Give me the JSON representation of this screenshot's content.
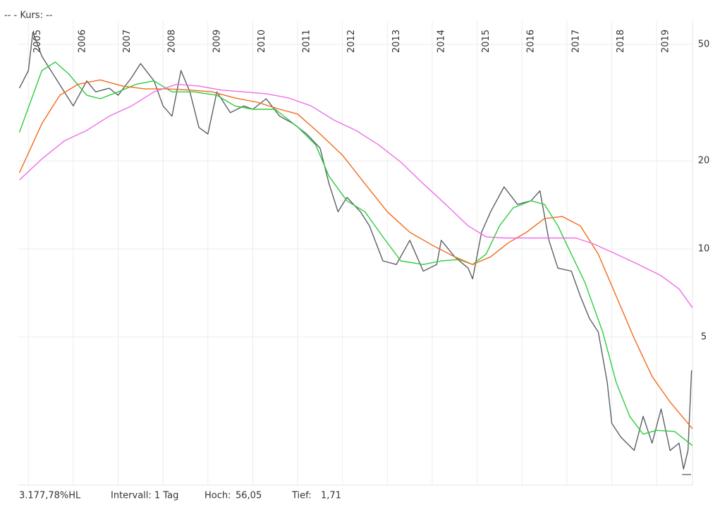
{
  "chart_data": {
    "type": "line",
    "title": "--  - Kurs: --",
    "log_y": true,
    "grid": true,
    "xlim": [
      2004.76,
      2019.8
    ],
    "xticks": [
      2005,
      2006,
      2007,
      2008,
      2009,
      2010,
      2011,
      2012,
      2013,
      2014,
      2015,
      2016,
      2017,
      2018,
      2019
    ],
    "ylim": [
      1.56,
      60
    ],
    "yticks": [
      5,
      10,
      20,
      50
    ],
    "footer": [
      "3.177,78%HL",
      "Intervall: 1 Tag",
      "Hoch:",
      "56,05",
      "Tief:",
      "1,71"
    ],
    "series": [
      {
        "color": "#5a6065",
        "x": [
          2004.8,
          2005.0,
          2005.1,
          2005.3,
          2005.5,
          2005.8,
          2006.0,
          2006.3,
          2006.5,
          2006.8,
          2007.0,
          2007.3,
          2007.5,
          2007.8,
          2008.0,
          2008.2,
          2008.4,
          2008.6,
          2008.8,
          2009.0,
          2009.2,
          2009.5,
          2009.8,
          2010.0,
          2010.3,
          2010.6,
          2010.9,
          2011.2,
          2011.5,
          2011.7,
          2011.9,
          2012.1,
          2012.4,
          2012.6,
          2012.9,
          2013.2,
          2013.5,
          2013.8,
          2014.1,
          2014.2,
          2014.5,
          2014.8,
          2014.9,
          2015.1,
          2015.3,
          2015.6,
          2015.9,
          2016.2,
          2016.4,
          2016.6,
          2016.8,
          2017.1,
          2017.3,
          2017.5,
          2017.7,
          2017.9,
          2018.0,
          2018.2,
          2018.5,
          2018.7,
          2018.9,
          2019.1,
          2019.3,
          2019.5,
          2019.6,
          2019.7,
          2019.78
        ],
        "values": [
          35.4,
          40.7,
          55,
          45.5,
          40.7,
          34.4,
          30.8,
          37.5,
          34.4,
          35.4,
          33.5,
          38.5,
          43,
          37.5,
          30.8,
          28.4,
          40.7,
          34.4,
          26,
          24.7,
          34.4,
          29.2,
          30.8,
          30,
          32.6,
          28.4,
          26.8,
          24.7,
          22.1,
          16.7,
          13.4,
          15,
          13.4,
          12.0,
          9.1,
          8.85,
          10.7,
          8.4,
          8.85,
          10.7,
          9.4,
          8.6,
          7.9,
          11.4,
          13.4,
          16.3,
          14.2,
          14.6,
          15.8,
          10.7,
          8.6,
          8.4,
          6.9,
          5.8,
          5.2,
          3.5,
          2.54,
          2.28,
          2.05,
          2.68,
          2.17,
          2.84,
          2.05,
          2.17,
          1.77,
          2.05,
          3.85
        ]
      },
      {
        "color": "#2ecc40",
        "x": [
          2004.8,
          2005.3,
          2005.6,
          2005.9,
          2006.3,
          2006.6,
          2007.0,
          2007.4,
          2007.8,
          2008.2,
          2008.7,
          2009.2,
          2009.6,
          2010.0,
          2010.5,
          2011.0,
          2011.4,
          2011.7,
          2012.1,
          2012.5,
          2012.9,
          2013.3,
          2013.8,
          2014.2,
          2014.6,
          2014.9,
          2015.2,
          2015.5,
          2015.8,
          2016.2,
          2016.5,
          2016.8,
          2017.1,
          2017.4,
          2017.8,
          2018.1,
          2018.4,
          2018.7,
          2019.0,
          2019.4,
          2019.8
        ],
        "values": [
          25,
          40.7,
          43.5,
          39.6,
          33.5,
          32.6,
          34.4,
          36.5,
          37.5,
          34.4,
          34.4,
          33.5,
          30.8,
          30,
          30,
          26.1,
          22.7,
          17.7,
          14.6,
          13.4,
          11,
          9.1,
          8.85,
          9.1,
          9.2,
          8.85,
          9.6,
          12,
          13.8,
          14.6,
          14.2,
          12,
          9.6,
          7.7,
          5.2,
          3.5,
          2.68,
          2.33,
          2.4,
          2.38,
          2.13
        ]
      },
      {
        "color": "#f26b1d",
        "x": [
          2004.8,
          2005.3,
          2005.7,
          2006.1,
          2006.6,
          2007.1,
          2007.6,
          2008.1,
          2008.6,
          2009.1,
          2009.6,
          2010.1,
          2010.6,
          2011.0,
          2011.5,
          2012.0,
          2012.5,
          2013.0,
          2013.5,
          2014.0,
          2014.5,
          2014.9,
          2015.3,
          2015.7,
          2016.1,
          2016.5,
          2016.9,
          2017.3,
          2017.7,
          2018.1,
          2018.5,
          2018.9,
          2019.3,
          2019.8
        ],
        "values": [
          18.2,
          26.8,
          33.5,
          36.5,
          37.8,
          36,
          35.2,
          35.2,
          34.9,
          34.4,
          32.8,
          31.7,
          30,
          28.9,
          24.7,
          20.9,
          16.7,
          13.4,
          11.4,
          10.3,
          9.4,
          8.85,
          9.4,
          10.5,
          11.4,
          12.7,
          12.9,
          12,
          9.6,
          6.9,
          4.95,
          3.67,
          3.0,
          2.43
        ]
      },
      {
        "color": "#ee6ee8",
        "x": [
          2004.8,
          2005.3,
          2005.8,
          2006.3,
          2006.8,
          2007.3,
          2007.8,
          2008.3,
          2008.8,
          2009.3,
          2009.8,
          2010.3,
          2010.8,
          2011.3,
          2011.8,
          2012.3,
          2012.8,
          2013.3,
          2013.8,
          2014.3,
          2014.8,
          2015.2,
          2015.6,
          2016.2,
          2016.7,
          2017.2,
          2017.6,
          2018.1,
          2018.6,
          2019.1,
          2019.5,
          2019.8
        ],
        "values": [
          17.2,
          20.3,
          23.4,
          25.4,
          28.4,
          30.8,
          34.4,
          36.5,
          36,
          34.9,
          34.4,
          33.9,
          32.8,
          30.8,
          27.6,
          25.4,
          22.7,
          19.8,
          16.7,
          14.2,
          12,
          11,
          10.9,
          10.9,
          10.9,
          10.9,
          10.4,
          9.6,
          8.85,
          8.1,
          7.3,
          6.3
        ]
      }
    ]
  }
}
